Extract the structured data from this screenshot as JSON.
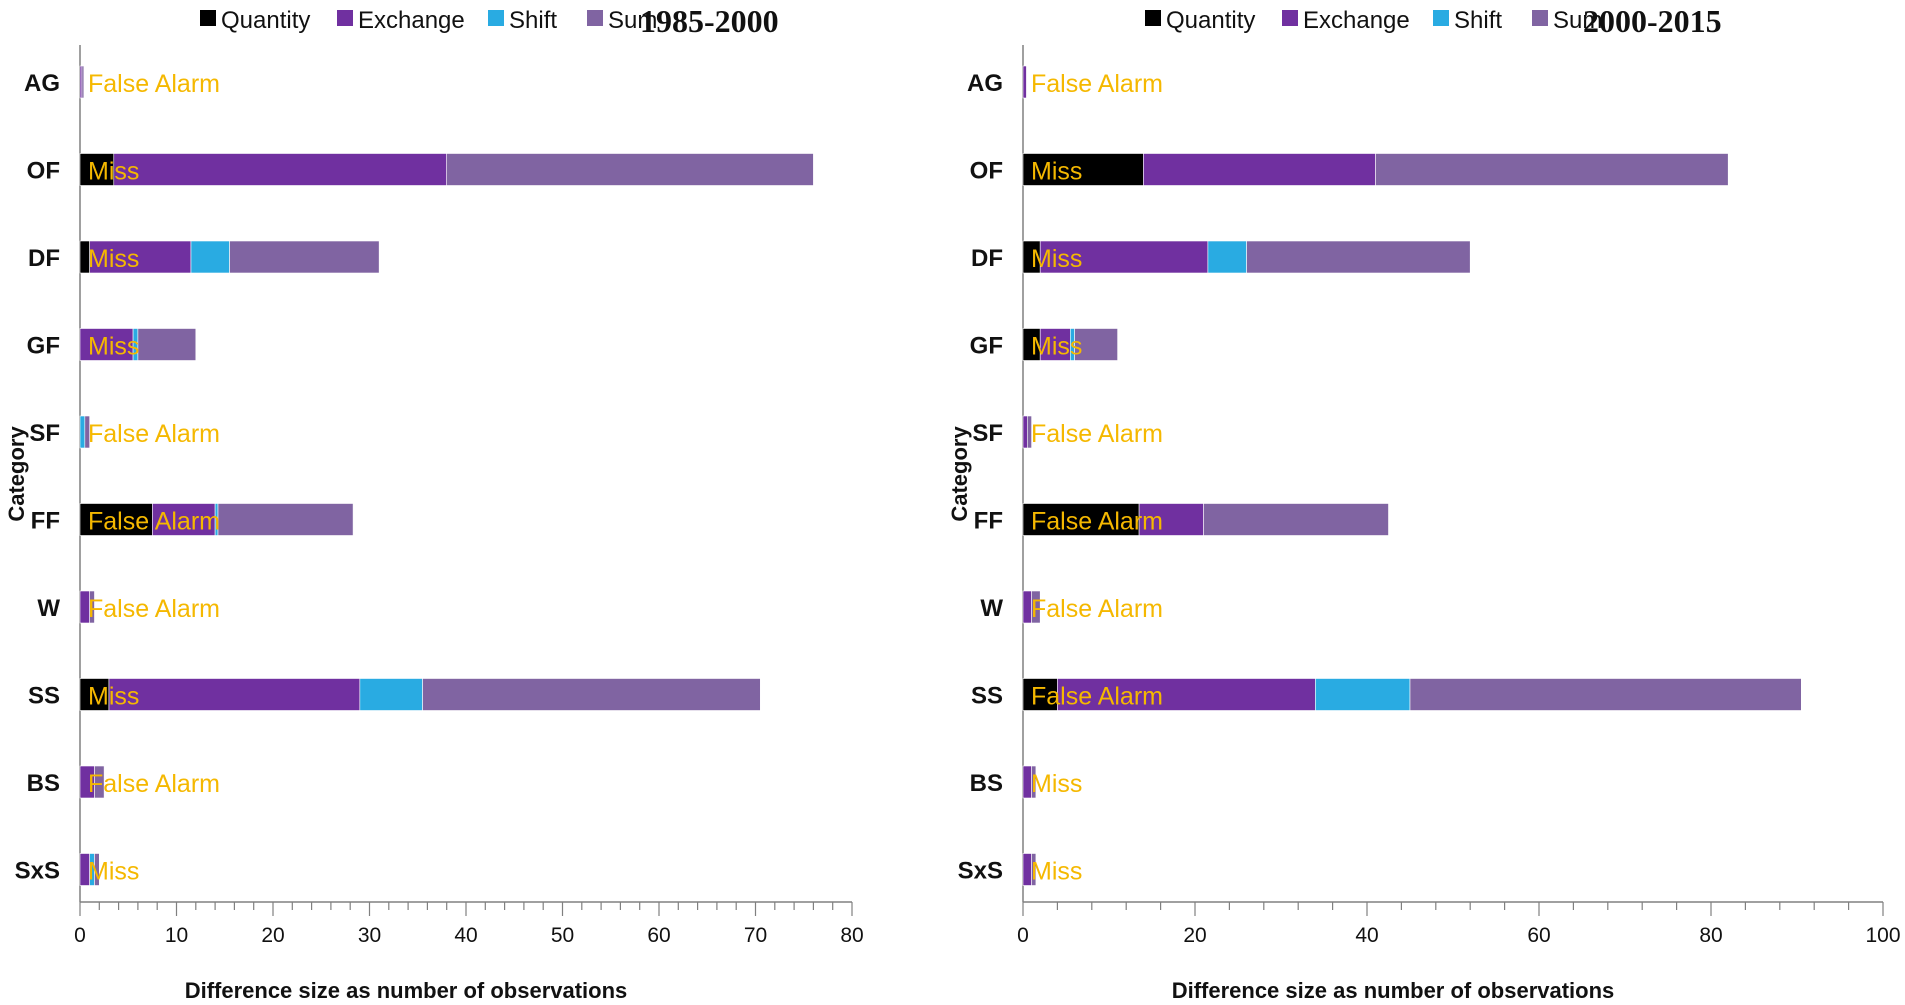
{
  "colors": {
    "quantity": "#000000",
    "exchange": "#7030a0",
    "shift": "#29abe2",
    "sum": "#8064a2",
    "annotation": "#f5b800",
    "axis": "#808080"
  },
  "chart_data": [
    {
      "type": "bar",
      "orientation": "horizontal",
      "stacked": true,
      "title": "1985-2000",
      "xlabel": "Difference size as number of observations",
      "ylabel": "Category",
      "xlim": [
        0,
        80
      ],
      "xticks": [
        0,
        10,
        20,
        30,
        40,
        50,
        60,
        70,
        80
      ],
      "legend": [
        "Quantity",
        "Exchange",
        "Shift",
        "Sum"
      ],
      "legend_position": "top",
      "categories": [
        "AG",
        "OF",
        "DF",
        "GF",
        "SF",
        "FF",
        "W",
        "SS",
        "BS",
        "SxS"
      ],
      "series": [
        {
          "name": "Quantity",
          "values": [
            0,
            3.5,
            1,
            0,
            0,
            7.5,
            0,
            3,
            0,
            0
          ]
        },
        {
          "name": "Exchange",
          "values": [
            0.2,
            34.5,
            10.5,
            5.5,
            0,
            6.5,
            1,
            26,
            1.5,
            1
          ]
        },
        {
          "name": "Shift",
          "values": [
            0,
            0,
            4,
            0.5,
            0.5,
            0.3,
            0,
            6.5,
            0,
            0.5
          ]
        },
        {
          "name": "Sum",
          "values": [
            0.2,
            38,
            15.5,
            6,
            0.5,
            14,
            0.5,
            35,
            1,
            0.5
          ]
        }
      ],
      "annotations": [
        "False Alarm",
        "Miss",
        "Miss",
        "Miss",
        "False Alarm",
        "False Alarm",
        "False Alarm",
        "Miss",
        "False Alarm",
        "Miss"
      ]
    },
    {
      "type": "bar",
      "orientation": "horizontal",
      "stacked": true,
      "title": "2000-2015",
      "xlabel": "Difference size as number of observations",
      "ylabel": "Category",
      "xlim": [
        0,
        100
      ],
      "xticks": [
        0,
        20,
        40,
        60,
        80,
        100
      ],
      "legend": [
        "Quantity",
        "Exchange",
        "Shift",
        "Sum"
      ],
      "legend_position": "top",
      "categories": [
        "AG",
        "OF",
        "DF",
        "GF",
        "SF",
        "FF",
        "W",
        "SS",
        "BS",
        "SxS"
      ],
      "series": [
        {
          "name": "Quantity",
          "values": [
            0,
            14,
            2,
            2,
            0,
            13.5,
            0,
            4,
            0,
            0
          ]
        },
        {
          "name": "Exchange",
          "values": [
            0.4,
            27,
            19.5,
            3.5,
            0.5,
            7.5,
            1,
            30,
            1,
            1
          ]
        },
        {
          "name": "Shift",
          "values": [
            0,
            0,
            4.5,
            0.5,
            0,
            0,
            0,
            11,
            0,
            0
          ]
        },
        {
          "name": "Sum",
          "values": [
            0,
            41,
            26,
            5,
            0.5,
            21.5,
            1,
            45.5,
            0.5,
            0.5
          ]
        }
      ],
      "annotations": [
        "False Alarm",
        "Miss",
        "Miss",
        "Miss",
        "False Alarm",
        "False Alarm",
        "False Alarm",
        "False Alarm",
        "Miss",
        "Miss"
      ]
    }
  ]
}
